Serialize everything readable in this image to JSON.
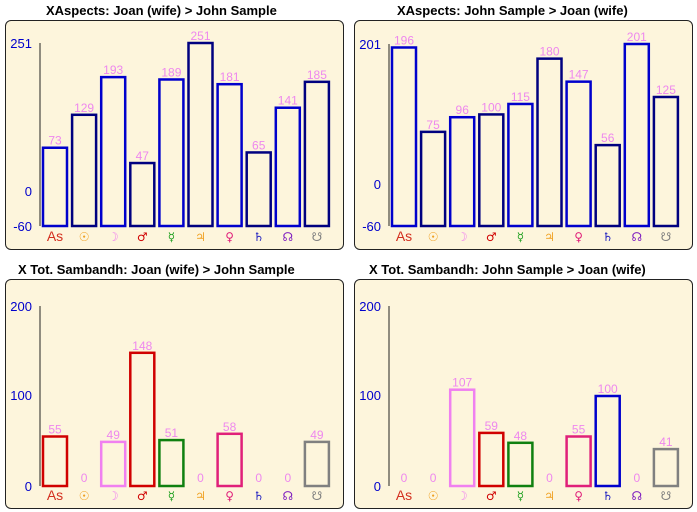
{
  "planet_symbols": [
    {
      "name": "As",
      "color": "#d32f1f"
    },
    {
      "name": "☉",
      "color": "#f0a020"
    },
    {
      "name": "☽",
      "color": "#f080f0"
    },
    {
      "name": "♂",
      "color": "#d00000"
    },
    {
      "name": "☿",
      "color": "#20a020"
    },
    {
      "name": "♃",
      "color": "#f0a020"
    },
    {
      "name": "♀",
      "color": "#e0207a"
    },
    {
      "name": "♄",
      "color": "#2020c0"
    },
    {
      "name": "☊",
      "color": "#8020c0"
    },
    {
      "name": "☋",
      "color": "#808080"
    }
  ],
  "value_label_color": "#ee88ee",
  "chart_data": [
    {
      "type": "bar",
      "title": "XAspects: Joan (wife) > John Sample",
      "title_color": "#e00000",
      "categories": [
        "As",
        "☉",
        "☽",
        "♂",
        "☿",
        "♃",
        "♀",
        "♄",
        "☊",
        "☋"
      ],
      "values": [
        73,
        129,
        193,
        47,
        189,
        251,
        181,
        65,
        141,
        185
      ],
      "bar_colors": [
        "#0000cc",
        "#000080",
        "#0000cc",
        "#000080",
        "#0000cc",
        "#000080",
        "#0000cc",
        "#000080",
        "#0000cc",
        "#000080"
      ],
      "yticks": [
        "251",
        "0",
        "-60"
      ],
      "ylim": [
        -60,
        251
      ],
      "axis_color": "#0000cc"
    },
    {
      "type": "bar",
      "title": "XAspects: John Sample > Joan (wife)",
      "title_color": "#0000cc",
      "categories": [
        "As",
        "☉",
        "☽",
        "♂",
        "☿",
        "♃",
        "♀",
        "♄",
        "☊",
        "☋"
      ],
      "values": [
        196,
        75,
        96,
        100,
        115,
        180,
        147,
        56,
        201,
        125
      ],
      "bar_colors": [
        "#0000cc",
        "#000080",
        "#0000cc",
        "#000080",
        "#0000cc",
        "#000080",
        "#0000cc",
        "#000080",
        "#0000cc",
        "#000080"
      ],
      "yticks": [
        "201",
        "0",
        "-60"
      ],
      "ylim": [
        -60,
        201
      ],
      "axis_color": "#0000cc"
    },
    {
      "type": "bar",
      "title": "X Tot. Sambandh: Joan (wife) > John Sample",
      "title_color": "#e00000",
      "categories": [
        "As",
        "☉",
        "☽",
        "♂",
        "☿",
        "♃",
        "♀",
        "♄",
        "☊",
        "☋"
      ],
      "values": [
        55,
        0,
        49,
        148,
        51,
        0,
        58,
        0,
        0,
        49
      ],
      "bar_colors": [
        "#d00000",
        "#f0a020",
        "#f080f0",
        "#d00000",
        "#108010",
        "#f0a020",
        "#e0207a",
        "#0000cc",
        "#8020c0",
        "#808080"
      ],
      "yticks": [
        "200",
        "100",
        "0"
      ],
      "ylim": [
        0,
        200
      ],
      "axis_color": "#0000cc"
    },
    {
      "type": "bar",
      "title": "X Tot. Sambandh: John Sample > Joan (wife)",
      "title_color": "#0000cc",
      "categories": [
        "As",
        "☉",
        "☽",
        "♂",
        "☿",
        "♃",
        "♀",
        "♄",
        "☊",
        "☋"
      ],
      "values": [
        0,
        0,
        107,
        59,
        48,
        0,
        55,
        100,
        0,
        41
      ],
      "bar_colors": [
        "#d00000",
        "#f0a020",
        "#f080f0",
        "#d00000",
        "#108010",
        "#f0a020",
        "#e0207a",
        "#0000cc",
        "#8020c0",
        "#808080"
      ],
      "yticks": [
        "200",
        "100",
        "0"
      ],
      "ylim": [
        0,
        200
      ],
      "axis_color": "#0000cc"
    }
  ]
}
